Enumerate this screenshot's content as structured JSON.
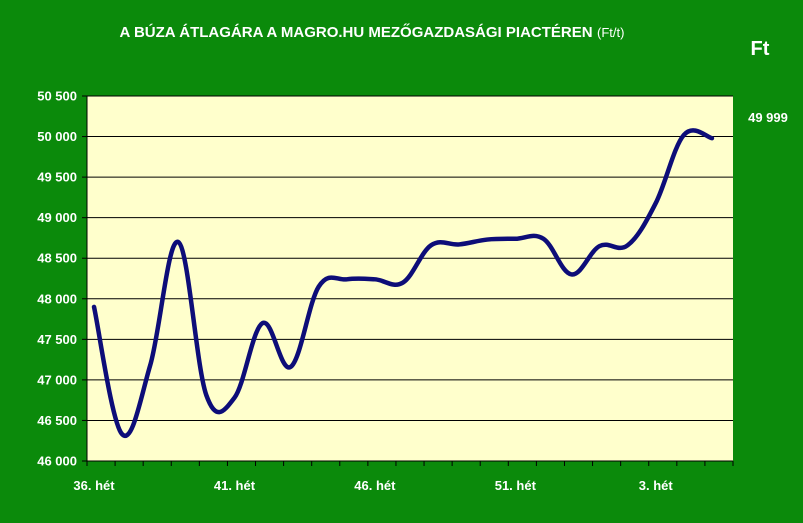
{
  "chart_data": {
    "type": "line",
    "title": "A BÚZA ÁTLAGÁRA A MAGRO.HU MEZŐGAZDASÁGI PIACTÉREN",
    "title_unit": "(Ft/t)",
    "ylabel": "Ft",
    "last_value_label": "49 999",
    "ylim": [
      46000,
      50500
    ],
    "y_ticks": [
      {
        "value": 46000,
        "label": "46 000"
      },
      {
        "value": 46500,
        "label": "46 500"
      },
      {
        "value": 47000,
        "label": "47 000"
      },
      {
        "value": 47500,
        "label": "47 500"
      },
      {
        "value": 48000,
        "label": "48 000"
      },
      {
        "value": 48500,
        "label": "48 500"
      },
      {
        "value": 49000,
        "label": "49 000"
      },
      {
        "value": 49500,
        "label": "49 500"
      },
      {
        "value": 50000,
        "label": "50 000"
      },
      {
        "value": 50500,
        "label": "50 500"
      }
    ],
    "x_tick_labels": [
      {
        "index": 1,
        "label": "36. hét"
      },
      {
        "index": 11,
        "label": "41. hét"
      },
      {
        "index": 21,
        "label": "46. hét"
      },
      {
        "index": 31,
        "label": "51. hét"
      },
      {
        "index": 41,
        "label": "3. hét"
      }
    ],
    "category_count": 46,
    "grid": true,
    "colors": {
      "background": "#0b8a0b",
      "plot_area": "#ffffcc",
      "line": "#0d0d78",
      "text": "#ffffff",
      "grid": "#000000"
    },
    "series": [
      {
        "x": [
          1,
          3,
          5,
          7,
          9,
          11,
          13,
          15,
          17,
          19,
          21,
          23,
          25,
          27,
          29,
          31,
          33,
          35,
          37,
          39,
          41,
          43,
          45
        ],
        "values": [
          47900,
          46330,
          47180,
          48700,
          46810,
          46780,
          47700,
          47160,
          48150,
          48240,
          48240,
          48200,
          48660,
          48670,
          48730,
          48740,
          48740,
          48300,
          48650,
          48660,
          49180,
          50020,
          49980
        ]
      }
    ]
  }
}
